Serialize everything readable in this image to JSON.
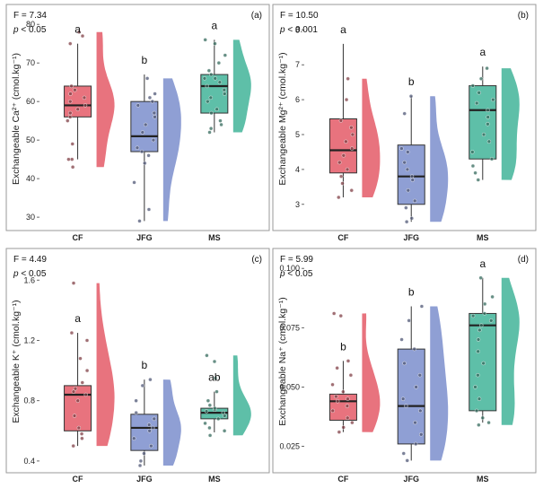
{
  "figure": {
    "categories": [
      "CF",
      "JFG",
      "MS"
    ],
    "colors": {
      "CF": "#E8737E",
      "JFG": "#8F9FD4",
      "MS": "#5EBFA8"
    }
  },
  "chart_data": [
    {
      "panel": "(a)",
      "type": "raincloud-box",
      "f_text": "F = 7.34",
      "p_text": "< 0.05",
      "ylabel": "Exchangeable Ca²⁺ (cmol.kg⁻¹)",
      "ylim": [
        27,
        84
      ],
      "yticks": [
        30,
        40,
        50,
        60,
        70,
        80
      ],
      "groups": [
        {
          "name": "CF",
          "letter": "a",
          "q1": 56,
          "median": 59,
          "q3": 64,
          "wmin": 45,
          "wmax": 75,
          "points": [
            43,
            45,
            45,
            49,
            55,
            56,
            57,
            58,
            59,
            60,
            61,
            62,
            63,
            64,
            75,
            77,
            78
          ]
        },
        {
          "name": "JFG",
          "letter": "b",
          "q1": 47,
          "median": 51,
          "q3": 60,
          "wmin": 29,
          "wmax": 67,
          "points": [
            29,
            32,
            39,
            44,
            46,
            47,
            48,
            50,
            52,
            54,
            56,
            57,
            59,
            60,
            61,
            62,
            66
          ]
        },
        {
          "name": "MS",
          "letter": "a",
          "q1": 57,
          "median": 64,
          "q3": 67,
          "wmin": 52,
          "wmax": 76,
          "points": [
            52,
            53,
            54,
            55,
            57,
            58,
            60,
            61,
            62,
            63,
            64,
            65,
            66,
            66,
            67,
            68,
            70,
            72,
            75,
            76
          ]
        }
      ]
    },
    {
      "panel": "(b)",
      "type": "raincloud-box",
      "f_text": "F = 10.50",
      "p_text": "< 0.001",
      "ylabel": "Exchangeable Mg²⁺ (cmol.kg⁻¹)",
      "ylim": [
        2.3,
        8.6
      ],
      "yticks": [
        3,
        4,
        5,
        6,
        7,
        8
      ],
      "groups": [
        {
          "name": "CF",
          "letter": "a",
          "q1": 3.9,
          "median": 4.55,
          "q3": 5.45,
          "wmin": 3.2,
          "wmax": 7.6,
          "points": [
            3.2,
            3.4,
            3.6,
            3.8,
            4.0,
            4.2,
            4.4,
            4.6,
            4.8,
            5.0,
            5.2,
            5.4,
            6.0,
            6.6
          ]
        },
        {
          "name": "JFG",
          "letter": "b",
          "q1": 3.0,
          "median": 3.8,
          "q3": 4.7,
          "wmin": 2.5,
          "wmax": 6.1,
          "points": [
            2.5,
            2.6,
            2.9,
            3.1,
            3.4,
            3.7,
            3.8,
            4.0,
            4.2,
            4.5,
            4.6,
            5.6,
            6.1
          ]
        },
        {
          "name": "MS",
          "letter": "a",
          "q1": 4.3,
          "median": 5.7,
          "q3": 6.4,
          "wmin": 3.7,
          "wmax": 6.95,
          "points": [
            3.7,
            3.9,
            4.1,
            4.3,
            4.5,
            4.8,
            5.0,
            5.3,
            5.5,
            5.7,
            5.9,
            6.0,
            6.2,
            6.4,
            6.6,
            6.9
          ]
        }
      ]
    },
    {
      "panel": "(c)",
      "type": "raincloud-box",
      "f_text": "F = 4.49",
      "p_text": "< 0.05",
      "ylabel": "Exchangeable K⁺ (cmol.kg⁻¹)",
      "ylim": [
        0.34,
        1.78
      ],
      "yticks": [
        0.4,
        0.8,
        1.2,
        1.6
      ],
      "groups": [
        {
          "name": "CF",
          "letter": "a",
          "q1": 0.6,
          "median": 0.84,
          "q3": 0.9,
          "wmin": 0.5,
          "wmax": 1.25,
          "points": [
            0.5,
            0.55,
            0.58,
            0.62,
            0.7,
            0.8,
            0.84,
            0.86,
            0.88,
            0.92,
            1.0,
            1.08,
            1.2,
            1.25,
            1.58
          ]
        },
        {
          "name": "JFG",
          "letter": "b",
          "q1": 0.47,
          "median": 0.62,
          "q3": 0.71,
          "wmin": 0.37,
          "wmax": 0.94,
          "points": [
            0.37,
            0.4,
            0.45,
            0.5,
            0.55,
            0.6,
            0.62,
            0.64,
            0.68,
            0.72,
            0.8,
            0.9,
            0.94
          ]
        },
        {
          "name": "MS",
          "letter": "ab",
          "q1": 0.68,
          "median": 0.72,
          "q3": 0.75,
          "wmin": 0.59,
          "wmax": 0.86,
          "points": [
            0.57,
            0.6,
            0.62,
            0.65,
            0.68,
            0.7,
            0.72,
            0.73,
            0.74,
            0.75,
            0.77,
            0.8,
            0.86,
            0.95,
            1.06,
            1.1
          ]
        }
      ]
    },
    {
      "panel": "(d)",
      "type": "raincloud-box",
      "f_text": "F = 5.99",
      "p_text": "< 0.05",
      "ylabel": "Exchangeable Na⁺ (cmol.kg⁻¹)",
      "ylim": [
        0.015,
        0.1065
      ],
      "yticks": [
        0.025,
        0.05,
        0.075,
        0.1
      ],
      "ytick_labels": [
        "0.025",
        "0.050",
        "0.075",
        "0.100"
      ],
      "groups": [
        {
          "name": "CF",
          "letter": "b",
          "q1": 0.036,
          "median": 0.044,
          "q3": 0.047,
          "wmin": 0.031,
          "wmax": 0.061,
          "points": [
            0.031,
            0.033,
            0.035,
            0.037,
            0.04,
            0.042,
            0.044,
            0.045,
            0.046,
            0.048,
            0.051,
            0.055,
            0.058,
            0.061,
            0.08,
            0.081
          ]
        },
        {
          "name": "JFG",
          "letter": "b",
          "q1": 0.026,
          "median": 0.042,
          "q3": 0.066,
          "wmin": 0.019,
          "wmax": 0.084,
          "points": [
            0.019,
            0.022,
            0.026,
            0.03,
            0.035,
            0.04,
            0.042,
            0.045,
            0.05,
            0.055,
            0.06,
            0.066,
            0.07,
            0.078,
            0.084
          ]
        },
        {
          "name": "MS",
          "letter": "a",
          "q1": 0.04,
          "median": 0.076,
          "q3": 0.081,
          "wmin": 0.035,
          "wmax": 0.096,
          "points": [
            0.034,
            0.035,
            0.037,
            0.04,
            0.045,
            0.05,
            0.055,
            0.06,
            0.065,
            0.07,
            0.074,
            0.076,
            0.078,
            0.08,
            0.081,
            0.085,
            0.088,
            0.096
          ]
        }
      ]
    }
  ]
}
